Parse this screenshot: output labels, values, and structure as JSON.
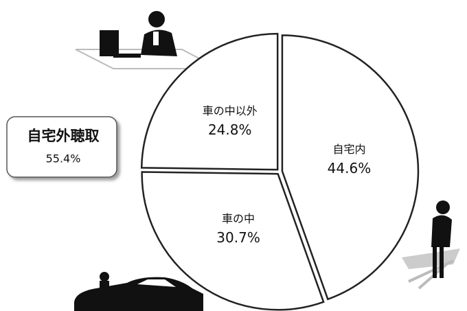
{
  "chart_data": {
    "type": "pie",
    "categories": [
      "自宅内",
      "車の中",
      "車の中以外"
    ],
    "values": [
      44.6,
      30.7,
      24.8
    ],
    "value_labels": [
      "44.6%",
      "30.7%",
      "24.8%"
    ],
    "color": "#ffffff",
    "edge_color": "#222222",
    "annotation": {
      "text": "自宅外聴取",
      "value": 55.4,
      "value_label": "55.4%"
    }
  }
}
